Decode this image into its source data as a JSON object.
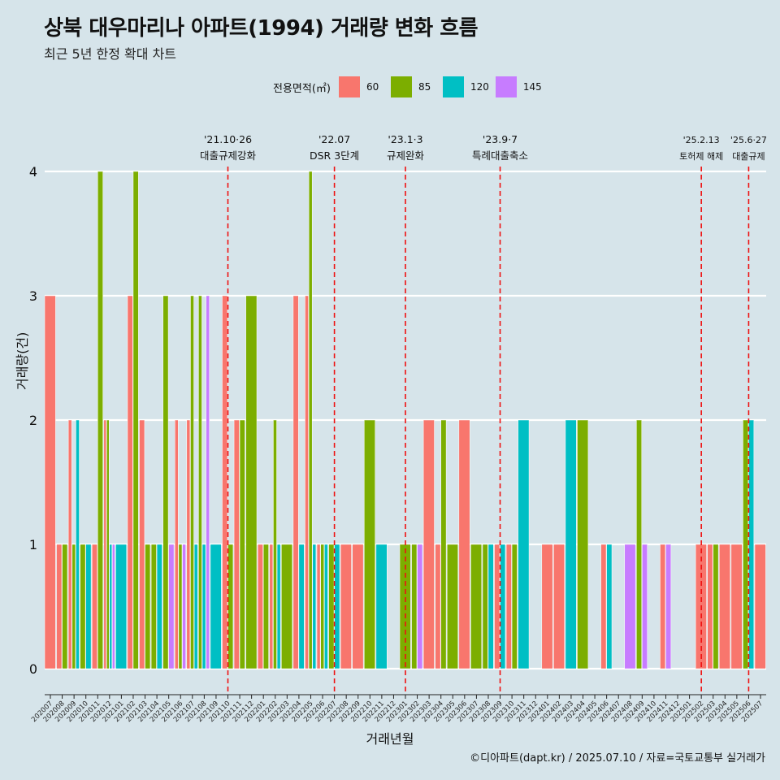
{
  "header": {
    "title": "상북 대우마리나 아파트(1994) 거래량 변화 흐름",
    "subtitle": "최근 5년 한정 확대 차트"
  },
  "legend": {
    "title": "전용면적(㎡)",
    "items": [
      {
        "label": "60",
        "color": "#f8766d"
      },
      {
        "label": "85",
        "color": "#7cae00"
      },
      {
        "label": "120",
        "color": "#00bfc4"
      },
      {
        "label": "145",
        "color": "#c77cff"
      }
    ]
  },
  "axes": {
    "ylabel": "거래량(건)",
    "xlabel": "거래년월"
  },
  "caption": "©디아파트(dapt.kr) / 2025.07.10 / 자료=국토교통부 실거래가",
  "chart_data": {
    "type": "bar",
    "categories": [
      "202007",
      "202008",
      "202009",
      "202010",
      "202011",
      "202012",
      "202101",
      "202102",
      "202103",
      "202104",
      "202105",
      "202106",
      "202107",
      "202108",
      "202109",
      "202110",
      "202111",
      "202112",
      "202201",
      "202202",
      "202203",
      "202204",
      "202205",
      "202206",
      "202207",
      "202208",
      "202209",
      "202210",
      "202211",
      "202212",
      "202301",
      "202302",
      "202303",
      "202304",
      "202305",
      "202306",
      "202307",
      "202308",
      "202309",
      "202310",
      "202311",
      "202312",
      "202401",
      "202402",
      "202403",
      "202404",
      "202405",
      "202406",
      "202407",
      "202408",
      "202409",
      "202410",
      "202411",
      "202412",
      "202501",
      "202502",
      "202503",
      "202504",
      "202505",
      "202506",
      "202507"
    ],
    "series": [
      {
        "name": "60",
        "values": [
          3,
          1,
          2,
          0,
          1,
          2,
          0,
          3,
          2,
          0,
          0,
          2,
          2,
          0,
          0,
          3,
          2,
          0,
          1,
          1,
          0,
          3,
          3,
          1,
          0,
          1,
          1,
          0,
          0,
          0,
          0,
          0,
          2,
          1,
          0,
          2,
          0,
          0,
          1,
          1,
          0,
          0,
          1,
          1,
          0,
          0,
          0,
          1,
          0,
          0,
          0,
          0,
          1,
          0,
          0,
          1,
          1,
          1,
          1,
          0,
          1
        ]
      },
      {
        "name": "85",
        "values": [
          0,
          1,
          1,
          1,
          4,
          2,
          0,
          4,
          1,
          1,
          3,
          1,
          3,
          3,
          0,
          1,
          2,
          3,
          1,
          2,
          1,
          0,
          4,
          1,
          1,
          0,
          0,
          2,
          0,
          0,
          1,
          1,
          0,
          2,
          1,
          0,
          1,
          1,
          0,
          1,
          0,
          0,
          0,
          0,
          0,
          2,
          0,
          0,
          0,
          0,
          2,
          0,
          0,
          0,
          0,
          0,
          1,
          0,
          0,
          2,
          0
        ]
      },
      {
        "name": "120",
        "values": [
          0,
          0,
          2,
          1,
          0,
          1,
          1,
          0,
          0,
          1,
          0,
          0,
          1,
          1,
          1,
          0,
          0,
          0,
          0,
          1,
          0,
          1,
          1,
          1,
          1,
          0,
          0,
          0,
          1,
          0,
          0,
          0,
          0,
          0,
          0,
          0,
          0,
          1,
          1,
          0,
          2,
          0,
          0,
          0,
          2,
          0,
          0,
          1,
          0,
          0,
          0,
          0,
          0,
          0,
          0,
          0,
          0,
          0,
          0,
          2,
          0
        ]
      },
      {
        "name": "145",
        "values": [
          0,
          0,
          0,
          0,
          0,
          1,
          0,
          0,
          0,
          0,
          1,
          1,
          0,
          3,
          0,
          0,
          0,
          0,
          0,
          0,
          0,
          0,
          0,
          0,
          0,
          0,
          0,
          0,
          0,
          0,
          0,
          1,
          0,
          0,
          0,
          0,
          0,
          0,
          0,
          0,
          0,
          0,
          0,
          0,
          0,
          0,
          0,
          0,
          0,
          1,
          1,
          0,
          1,
          0,
          0,
          0,
          0,
          0,
          0,
          0,
          0
        ]
      }
    ],
    "yticks": [
      "0",
      "1",
      "2",
      "3",
      "4"
    ],
    "ylim": [
      0,
      4
    ],
    "events": [
      {
        "month": "202110",
        "date": "'21.10·26",
        "label": "대출규제강화"
      },
      {
        "month": "202207",
        "date": "'22.07",
        "label": "DSR 3단계"
      },
      {
        "month": "202301",
        "date": "'23.1·3",
        "label": "규제완화"
      },
      {
        "month": "202309",
        "date": "'23.9·7",
        "label": "특례대출축소"
      },
      {
        "month": "202502",
        "date": "'25.2.13",
        "label": "토허제 해제"
      },
      {
        "month": "202506",
        "date": "'25.6·27",
        "label": "대출규제"
      }
    ]
  }
}
